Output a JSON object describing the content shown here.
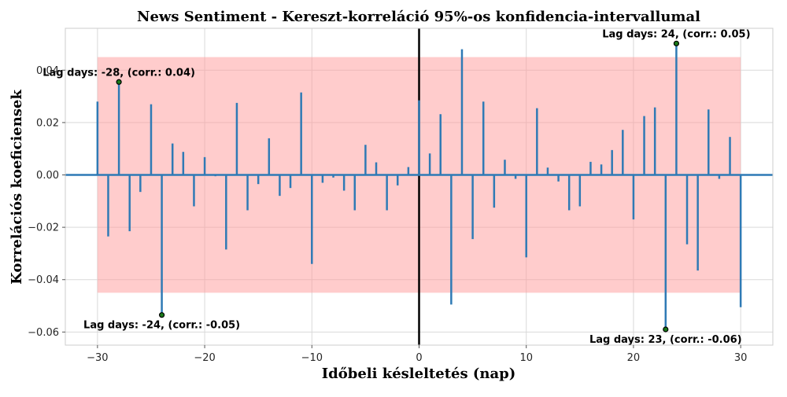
{
  "chart_data": {
    "type": "bar",
    "title": "News Sentiment - Kereszt-korreláció 95%-os konfidencia-intervallumal",
    "xlabel": "Időbeli késleltetés (nap)",
    "ylabel": "Korrelációs koeficiensek",
    "xlim": [
      -33,
      33
    ],
    "ylim": [
      -0.065,
      0.056
    ],
    "grid": true,
    "x_ticks": [
      -30,
      -20,
      -10,
      0,
      10,
      20,
      30
    ],
    "x_tick_labels": [
      "−30",
      "−20",
      "−10",
      "0",
      "10",
      "20",
      "30"
    ],
    "y_ticks": [
      -0.06,
      -0.04,
      -0.02,
      0.0,
      0.02,
      0.04
    ],
    "y_tick_labels": [
      "−0.06",
      "−0.04",
      "−0.02",
      "0.00",
      "0.02",
      "0.04"
    ],
    "confidence_interval": {
      "lower": -0.045,
      "upper": 0.045,
      "x_from": -30,
      "x_to": 30,
      "color": "#ff9999"
    },
    "zero_lag_line": 0,
    "series": [
      {
        "x": [
          -30,
          -29,
          -28,
          -27,
          -26,
          -25,
          -24,
          -23,
          -22,
          -21,
          -20,
          -19,
          -18,
          -17,
          -16,
          -15,
          -14,
          -13,
          -12,
          -11,
          -10,
          -9,
          -8,
          -7,
          -6,
          -5,
          -4,
          -3,
          -2,
          -1,
          0,
          1,
          2,
          3,
          4,
          5,
          6,
          7,
          8,
          9,
          10,
          11,
          12,
          13,
          14,
          15,
          16,
          17,
          18,
          19,
          20,
          21,
          22,
          23,
          24,
          25,
          26,
          27,
          28,
          29,
          30
        ],
        "values": [
          0.028,
          -0.0235,
          0.0355,
          -0.0215,
          -0.0065,
          0.027,
          -0.0535,
          0.012,
          0.0088,
          -0.012,
          0.0068,
          -0.0005,
          -0.0285,
          0.0275,
          -0.0135,
          -0.0035,
          0.014,
          -0.008,
          -0.005,
          0.0315,
          -0.034,
          -0.003,
          -0.001,
          -0.006,
          -0.0135,
          0.0115,
          0.0048,
          -0.0135,
          -0.004,
          0.003,
          0.0285,
          0.0082,
          0.0232,
          -0.0495,
          0.048,
          -0.0245,
          0.028,
          -0.0125,
          0.0058,
          -0.0015,
          -0.0315,
          0.0255,
          0.0028,
          -0.0025,
          -0.0135,
          -0.012,
          0.005,
          0.004,
          0.0095,
          0.0172,
          -0.017,
          0.0225,
          0.0258,
          -0.059,
          0.0502,
          -0.0265,
          -0.0365,
          0.025,
          -0.0015,
          0.0145,
          -0.0505
        ],
        "color": "#2f7ab5"
      }
    ],
    "annotations": [
      {
        "x": -28,
        "y": 0.0355,
        "text": "Lag days: -28, (corr.: 0.04)"
      },
      {
        "x": -24,
        "y": -0.0535,
        "text": "Lag days: -24, (corr.: -0.05)"
      },
      {
        "x": 24,
        "y": 0.0502,
        "text": "Lag days: 24, (corr.: 0.05)"
      },
      {
        "x": 23,
        "y": -0.059,
        "text": "Lag days: 23, (corr.: -0.06)"
      }
    ]
  }
}
